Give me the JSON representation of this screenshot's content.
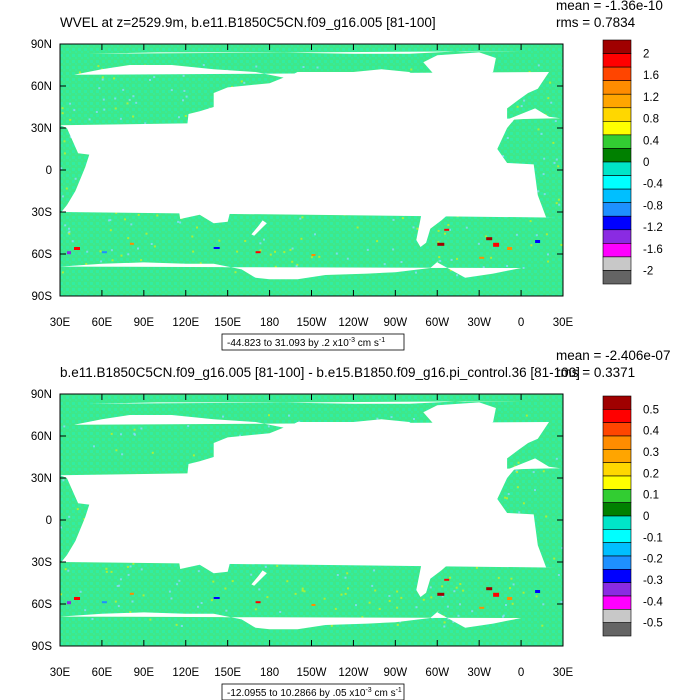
{
  "colors": {
    "land": "#ffffff",
    "ocean_base": "#3ee88a",
    "ocean_tint": "#28f0b6",
    "neg_speck": "#8ed8ff",
    "pos_speck": "#c8f020"
  },
  "chart_data": [
    {
      "type": "heatmap",
      "panel": "top",
      "title": "WVEL at z=2529.9m, b.e11.B1850C5CN.f09_g16.005 [81-100]",
      "stats": {
        "mean": "mean = -1.36e-10",
        "rms": "rms = 0.7834"
      },
      "range_label": "-44.823 to 31.093 by .2 x10",
      "units_exp": "-3",
      "units_rest": " cm s",
      "units_exp2": "-1",
      "x_ticks": [
        "30E",
        "60E",
        "90E",
        "120E",
        "150E",
        "180",
        "150W",
        "120W",
        "90W",
        "60W",
        "30W",
        "0",
        "30E"
      ],
      "y_ticks": [
        "90N",
        "60N",
        "30N",
        "0",
        "30S",
        "60S",
        "90S"
      ],
      "xlim": [
        30,
        390
      ],
      "ylim": [
        -90,
        90
      ],
      "colorbar": {
        "labels": [
          "2",
          "1.6",
          "1.2",
          "0.8",
          "0.4",
          "0",
          "-0.4",
          "-0.8",
          "-1.2",
          "-1.6",
          "-2"
        ],
        "colors": [
          "#a00000",
          "#ff0000",
          "#ff4500",
          "#ff8c00",
          "#ffa500",
          "#ffd700",
          "#ffff00",
          "#32cd32",
          "#008000",
          "#00e5c8",
          "#00ffff",
          "#00bfff",
          "#1e90ff",
          "#0000ff",
          "#8a2be2",
          "#ff00ff",
          "#c8c8c8",
          "#646464"
        ]
      }
    },
    {
      "type": "heatmap",
      "panel": "bottom",
      "title": "b.e11.B1850C5CN.f09_g16.005 [81-100] - b.e15.B1850.f09_g16.pi_control.36 [81-100]",
      "stats": {
        "mean": "mean = -2.406e-07",
        "rms": "rms = 0.3371"
      },
      "range_label": "-12.0955 to 10.2866 by .05 x10",
      "units_exp": "-3",
      "units_rest": " cm s",
      "units_exp2": "-1",
      "x_ticks": [
        "30E",
        "60E",
        "90E",
        "120E",
        "150E",
        "180",
        "150W",
        "120W",
        "90W",
        "60W",
        "30W",
        "0",
        "30E"
      ],
      "y_ticks": [
        "90N",
        "60N",
        "30N",
        "0",
        "30S",
        "60S",
        "90S"
      ],
      "xlim": [
        30,
        390
      ],
      "ylim": [
        -90,
        90
      ],
      "colorbar": {
        "labels": [
          "0.5",
          "0.4",
          "0.3",
          "0.2",
          "0.1",
          "0",
          "-0.1",
          "-0.2",
          "-0.3",
          "-0.4",
          "-0.5"
        ],
        "colors": [
          "#a00000",
          "#ff0000",
          "#ff4500",
          "#ff8c00",
          "#ffa500",
          "#ffd700",
          "#ffff00",
          "#32cd32",
          "#008000",
          "#00e5c8",
          "#00ffff",
          "#00bfff",
          "#1e90ff",
          "#0000ff",
          "#8a2be2",
          "#ff00ff",
          "#c8c8c8",
          "#646464"
        ]
      }
    }
  ]
}
